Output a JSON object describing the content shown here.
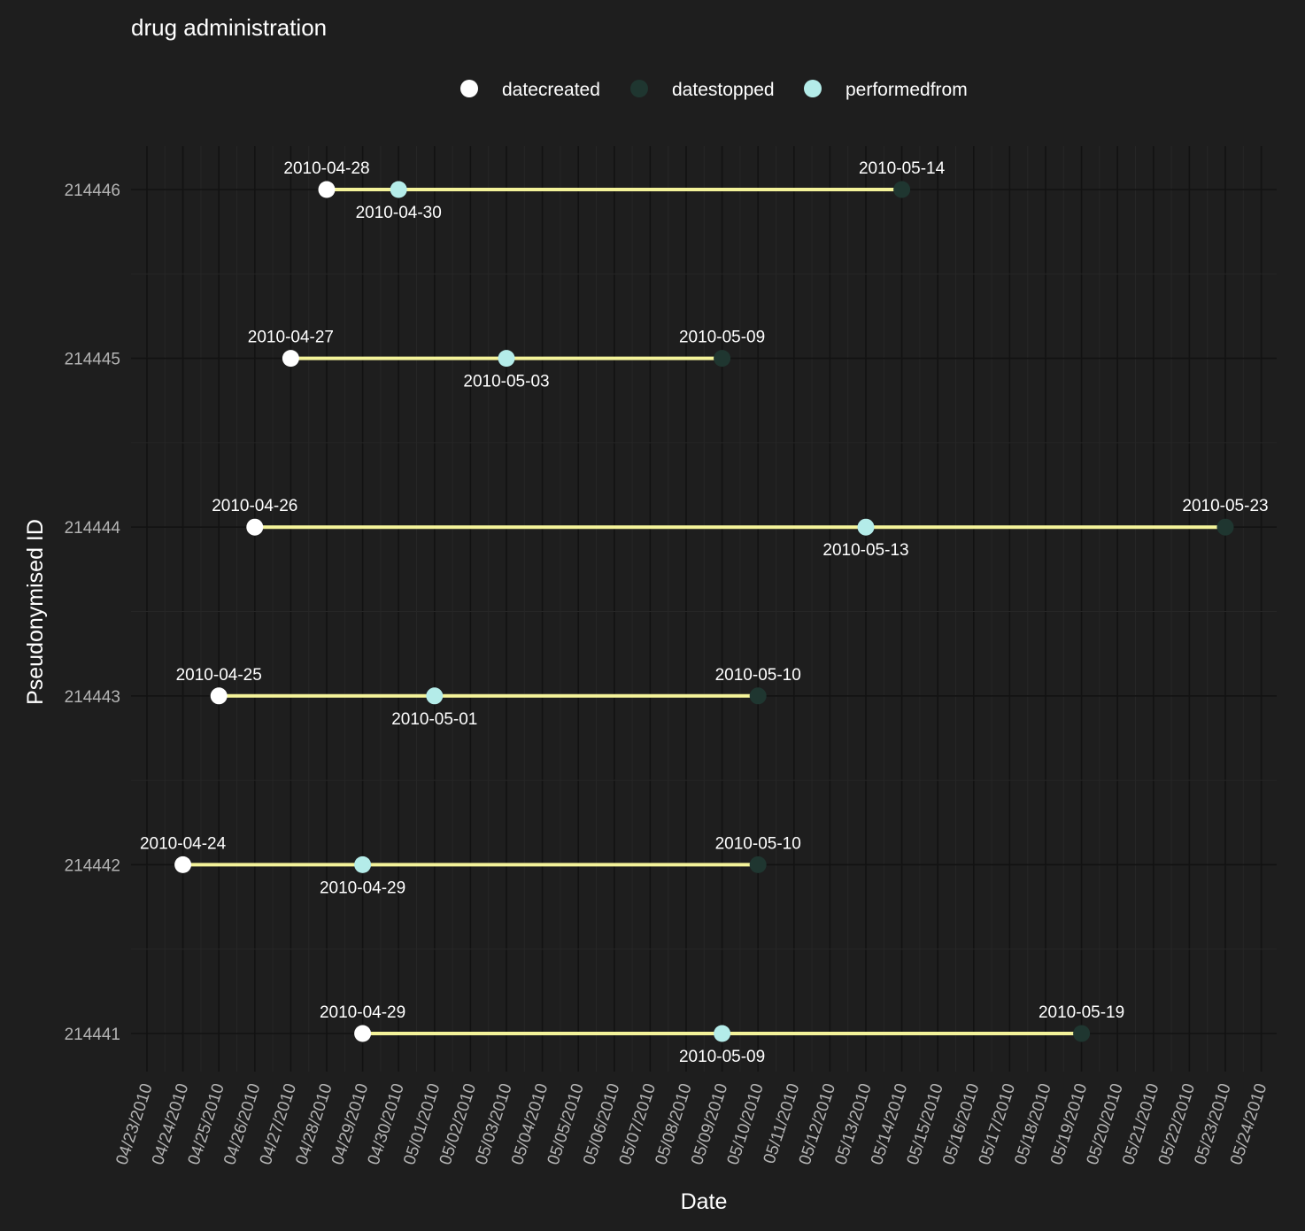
{
  "chart_data": {
    "type": "dumbbell",
    "title": "drug administration",
    "xlabel": "Date",
    "ylabel": "Pseudonymised ID",
    "xlim": [
      "2010-04-23",
      "2010-05-24"
    ],
    "x_tick_format": "MM/DD/YYYY",
    "grid": true,
    "legend_position": "top",
    "legend": [
      {
        "name": "datecreated",
        "color": "#ffffff"
      },
      {
        "name": "datestopped",
        "color": "#1f3630"
      },
      {
        "name": "performedfrom",
        "color": "#b4ece9"
      }
    ],
    "segment_color": "#f4f39a",
    "rows": [
      {
        "id": "214446",
        "datecreated": "2010-04-28",
        "performedfrom": "2010-04-30",
        "datestopped": "2010-05-14"
      },
      {
        "id": "214445",
        "datecreated": "2010-04-27",
        "performedfrom": "2010-05-03",
        "datestopped": "2010-05-09"
      },
      {
        "id": "214444",
        "datecreated": "2010-04-26",
        "performedfrom": "2010-05-13",
        "datestopped": "2010-05-23"
      },
      {
        "id": "214443",
        "datecreated": "2010-04-25",
        "performedfrom": "2010-05-01",
        "datestopped": "2010-05-10"
      },
      {
        "id": "214442",
        "datecreated": "2010-04-24",
        "performedfrom": "2010-04-29",
        "datestopped": "2010-05-10"
      },
      {
        "id": "214441",
        "datecreated": "2010-04-29",
        "performedfrom": "2010-05-09",
        "datestopped": "2010-05-19"
      }
    ]
  }
}
